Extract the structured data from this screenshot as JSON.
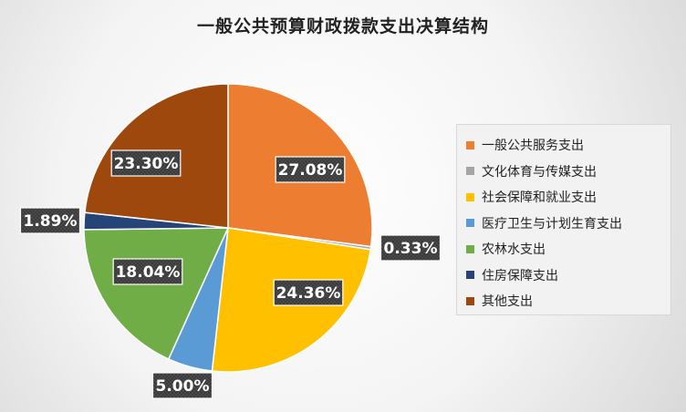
{
  "chart_data": {
    "type": "pie",
    "title": "一般公共预算财政拨款支出决算结构",
    "categories": [
      "一般公共服务支出",
      "文化体育与传媒支出",
      "社会保障和就业支出",
      "医疗卫生与计划生育支出",
      "农林水支出",
      "住房保障支出",
      "其他支出"
    ],
    "values": [
      27.08,
      0.33,
      24.36,
      5.0,
      18.04,
      1.89,
      23.3
    ],
    "labels": [
      "27.08%",
      "0.33%",
      "24.36%",
      "5.00%",
      "18.04%",
      "1.89%",
      "23.30%"
    ],
    "colors": [
      "#ED7D31",
      "#A5A5A5",
      "#FFC000",
      "#5B9BD5",
      "#70AD47",
      "#264478",
      "#9E480E"
    ],
    "legend_position": "right",
    "start_angle": "top",
    "direction": "clockwise"
  }
}
